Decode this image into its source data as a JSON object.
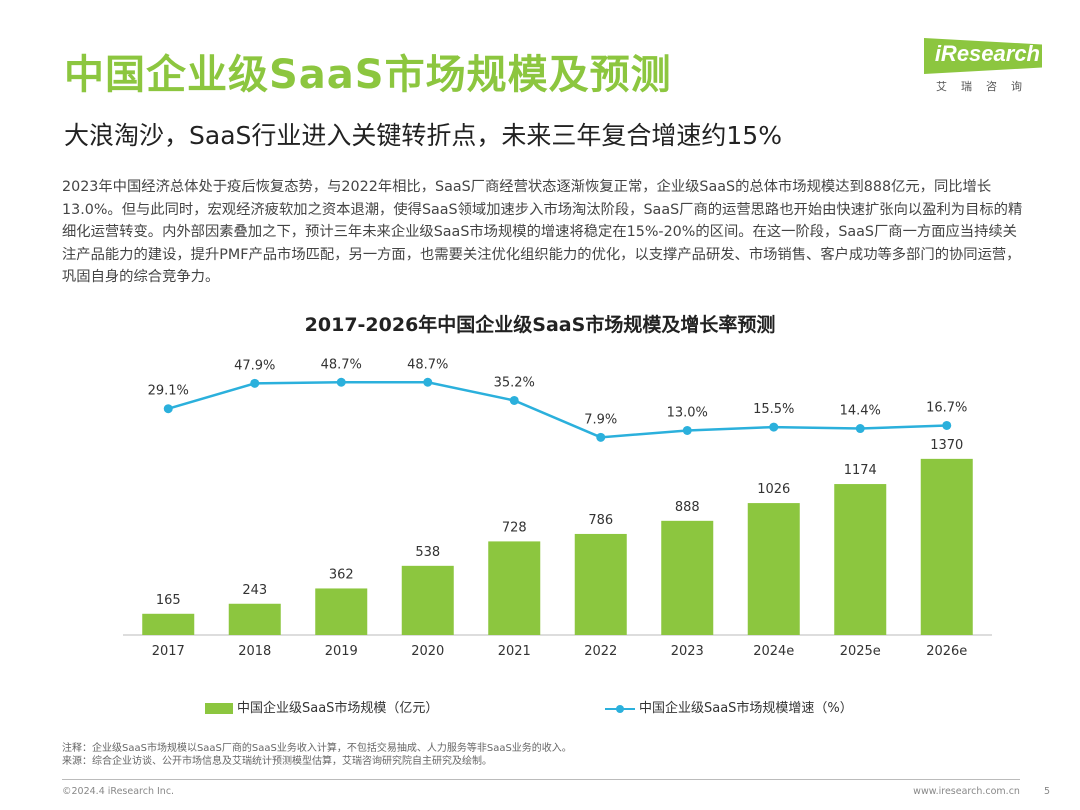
{
  "header": {
    "title": "中国企业级SaaS市场规模及预测",
    "subtitle": "大浪淘沙，SaaS行业进入关键转折点，未来三年复合增速约15%"
  },
  "logo": {
    "text": "iResearch",
    "subtext": "艾瑞咨询"
  },
  "paragraph": [
    "2023年中国经济总体处于疫后恢复态势，与2022年相比，SaaS厂商经营状态逐渐恢复正常，企业级SaaS的总体市场规模达到888亿元，同比增长13.0%。但与此同时，宏观经济疲软加之资本退潮，使得SaaS领域加速步入市场淘汰阶段，SaaS厂商的运营思路也开始由快速扩张向以盈利为目标的精细化运营转变。内外部因素叠加之下，预计三年未来企业级SaaS市场规模的增速将稳定在15%-20%的区间。在这一阶段，SaaS厂商一方面应当持续关注产品能力的建设，提升PMF产品市场匹配，另一方面，也需要关注优化组织能力的优化，以支撑产品研发、市场销售、客户成功等多部门的协同运营，巩固自身的综合竞争力。"
  ],
  "chart_data": {
    "type": "bar",
    "title": "2017-2026年中国企业级SaaS市场规模及增长率预测",
    "categories": [
      "2017",
      "2018",
      "2019",
      "2020",
      "2021",
      "2022",
      "2023",
      "2024e",
      "2025e",
      "2026e"
    ],
    "series": [
      {
        "name": "中国企业级SaaS市场规模（亿元）",
        "type": "bar",
        "color": "#8cc63f",
        "values": [
          165,
          243,
          362,
          538,
          728,
          786,
          888,
          1026,
          1174,
          1370
        ]
      },
      {
        "name": "中国企业级SaaS市场规模增速（%）",
        "type": "line",
        "color": "#2bb0dc",
        "values": [
          29.1,
          47.9,
          48.7,
          48.7,
          35.2,
          7.9,
          13.0,
          15.5,
          14.4,
          16.7
        ],
        "labels": [
          "29.1%",
          "47.9%",
          "48.7%",
          "48.7%",
          "35.2%",
          "7.9%",
          "13.0%",
          "15.5%",
          "14.4%",
          "16.7%"
        ]
      }
    ],
    "ylim": [
      0,
      1400
    ],
    "y2lim": [
      0,
      60
    ],
    "grid": false,
    "legend": "bottom"
  },
  "notes": {
    "note": "注释：企业级SaaS市场规模以SaaS厂商的SaaS业务收入计算，不包括交易抽成、人力服务等非SaaS业务的收入。",
    "source": "来源：综合企业访谈、公开市场信息及艾瑞统计预测模型估算，艾瑞咨询研究院自主研究及绘制。"
  },
  "footer": {
    "copyright": "©2024.4 iResearch Inc.",
    "url": "www.iresearch.com.cn",
    "page": "5"
  }
}
